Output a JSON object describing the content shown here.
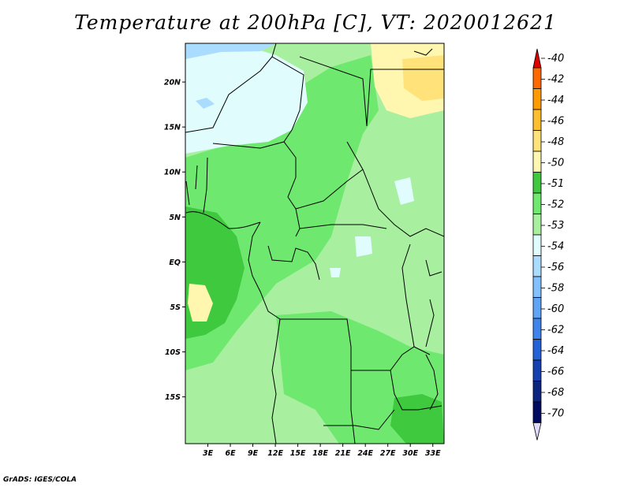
{
  "title": "Temperature at 200hPa [C], VT: 2020012621",
  "credit": "GrADS: IGES/COLA",
  "map": {
    "lon_ticks": [
      "3E",
      "6E",
      "9E",
      "12E",
      "15E",
      "18E",
      "21E",
      "24E",
      "27E",
      "30E",
      "33E"
    ],
    "lat_ticks": [
      "20N",
      "15N",
      "10N",
      "5N",
      "EQ",
      "5S",
      "10S",
      "15S"
    ],
    "lon_tick_values": [
      3,
      6,
      9,
      12,
      15,
      18,
      21,
      24,
      27,
      30,
      33
    ],
    "lat_tick_values": [
      20,
      15,
      10,
      5,
      0,
      -5,
      -10,
      -15
    ]
  },
  "colorbar": {
    "labels": [
      "-40",
      "-42",
      "-44",
      "-46",
      "-48",
      "-50",
      "-51",
      "-52",
      "-53",
      "-54",
      "-56",
      "-58",
      "-60",
      "-62",
      "-64",
      "-66",
      "-68",
      "-70"
    ],
    "colors": [
      "#ff2a00",
      "#ff6a00",
      "#ff9a00",
      "#ffbe2e",
      "#ffe37a",
      "#fff7b0",
      "#3ec93e",
      "#6ee86e",
      "#a8f0a0",
      "#e0fcfc",
      "#aadcff",
      "#82c0ff",
      "#5fa4f5",
      "#3e84ea",
      "#2462d8",
      "#1440b0",
      "#0a2480",
      "#000a60"
    ],
    "top_arrow_color": "#e00000",
    "bottom_arrow_color": "#e0dcff"
  }
}
